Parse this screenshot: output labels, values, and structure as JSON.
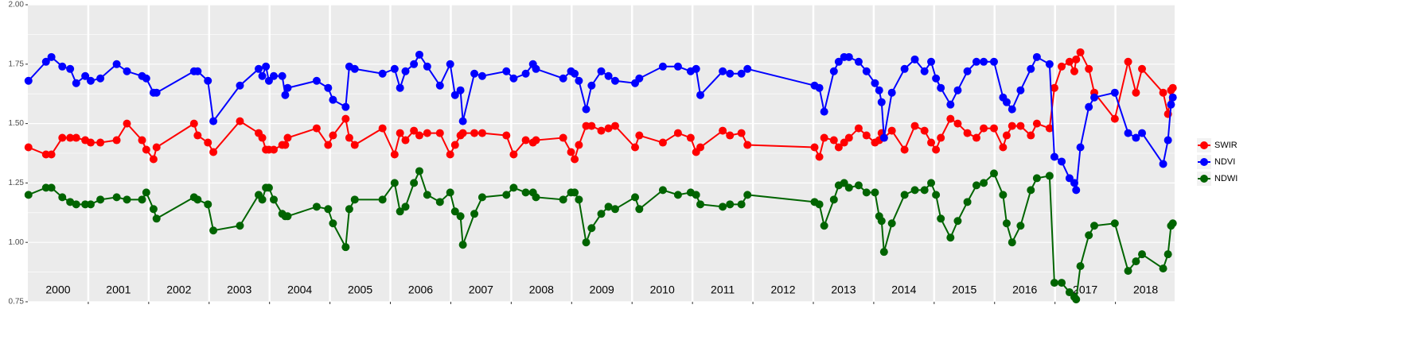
{
  "chart_data": {
    "type": "line",
    "x": [
      2000.01,
      2000.3,
      2000.39,
      2000.57,
      2000.7,
      2000.8,
      2000.95,
      2001.04,
      2001.2,
      2001.47,
      2001.64,
      2001.89,
      2001.96,
      2002.08,
      2002.13,
      2002.75,
      2002.81,
      2002.98,
      2003.07,
      2003.51,
      2003.82,
      2003.88,
      2003.94,
      2003.99,
      2004.07,
      2004.21,
      2004.26,
      2004.3,
      2004.78,
      2004.97,
      2005.05,
      2005.26,
      2005.32,
      2005.41,
      2005.87,
      2006.07,
      2006.16,
      2006.25,
      2006.39,
      2006.48,
      2006.61,
      2006.82,
      2006.99,
      2007.07,
      2007.16,
      2007.2,
      2007.39,
      2007.52,
      2007.92,
      2008.04,
      2008.24,
      2008.36,
      2008.41,
      2008.86,
      2008.99,
      2009.05,
      2009.12,
      2009.24,
      2009.33,
      2009.49,
      2009.61,
      2009.72,
      2010.05,
      2010.12,
      2010.51,
      2010.76,
      2010.97,
      2011.06,
      2011.13,
      2011.5,
      2011.62,
      2011.81,
      2011.91,
      2013.02,
      2013.1,
      2013.18,
      2013.34,
      2013.42,
      2013.51,
      2013.59,
      2013.75,
      2013.88,
      2014.02,
      2014.09,
      2014.13,
      2014.17,
      2014.3,
      2014.51,
      2014.68,
      2014.84,
      2014.95,
      2015.03,
      2015.11,
      2015.27,
      2015.39,
      2015.55,
      2015.7,
      2015.82,
      2015.99,
      2016.14,
      2016.2,
      2016.29,
      2016.43,
      2016.6,
      2016.7,
      2016.91,
      2016.99,
      2017.11,
      2017.24,
      2017.32,
      2017.35,
      2017.42,
      2017.56,
      2017.65,
      2017.99,
      2018.21,
      2018.34,
      2018.44,
      2018.79,
      2018.87,
      2018.92,
      2018.95
    ],
    "series": [
      {
        "name": "SWIR",
        "color": "#ff0000",
        "values": [
          1.4,
          1.37,
          1.37,
          1.44,
          1.44,
          1.44,
          1.43,
          1.42,
          1.42,
          1.43,
          1.5,
          1.43,
          1.39,
          1.35,
          1.4,
          1.5,
          1.45,
          1.42,
          1.38,
          1.51,
          1.46,
          1.44,
          1.39,
          1.39,
          1.39,
          1.41,
          1.41,
          1.44,
          1.48,
          1.41,
          1.45,
          1.52,
          1.44,
          1.41,
          1.48,
          1.37,
          1.46,
          1.43,
          1.47,
          1.45,
          1.46,
          1.46,
          1.37,
          1.41,
          1.45,
          1.46,
          1.46,
          1.46,
          1.45,
          1.37,
          1.43,
          1.42,
          1.43,
          1.44,
          1.38,
          1.35,
          1.41,
          1.49,
          1.49,
          1.47,
          1.48,
          1.49,
          1.4,
          1.45,
          1.42,
          1.46,
          1.44,
          1.38,
          1.4,
          1.47,
          1.45,
          1.46,
          1.41,
          1.4,
          1.36,
          1.44,
          1.43,
          1.4,
          1.42,
          1.44,
          1.48,
          1.45,
          1.42,
          1.43,
          1.46,
          1.44,
          1.47,
          1.39,
          1.49,
          1.47,
          1.42,
          1.39,
          1.44,
          1.52,
          1.5,
          1.46,
          1.44,
          1.48,
          1.48,
          1.4,
          1.45,
          1.49,
          1.49,
          1.45,
          1.5,
          1.48,
          1.65,
          1.74,
          1.76,
          1.72,
          1.77,
          1.8,
          1.73,
          1.63,
          1.52,
          1.76,
          1.63,
          1.73,
          1.63,
          1.54,
          1.64,
          1.65
        ]
      },
      {
        "name": "NDVI",
        "color": "#0000ff",
        "values": [
          1.68,
          1.76,
          1.78,
          1.74,
          1.73,
          1.67,
          1.7,
          1.68,
          1.69,
          1.75,
          1.72,
          1.7,
          1.69,
          1.63,
          1.63,
          1.72,
          1.72,
          1.68,
          1.51,
          1.66,
          1.73,
          1.7,
          1.74,
          1.68,
          1.7,
          1.7,
          1.62,
          1.65,
          1.68,
          1.65,
          1.6,
          1.57,
          1.74,
          1.73,
          1.71,
          1.73,
          1.65,
          1.72,
          1.75,
          1.79,
          1.74,
          1.66,
          1.75,
          1.62,
          1.64,
          1.51,
          1.71,
          1.7,
          1.72,
          1.69,
          1.71,
          1.75,
          1.73,
          1.69,
          1.72,
          1.71,
          1.68,
          1.56,
          1.66,
          1.72,
          1.7,
          1.68,
          1.67,
          1.69,
          1.74,
          1.74,
          1.72,
          1.73,
          1.62,
          1.72,
          1.71,
          1.71,
          1.73,
          1.66,
          1.65,
          1.55,
          1.72,
          1.76,
          1.78,
          1.78,
          1.76,
          1.72,
          1.67,
          1.64,
          1.59,
          1.44,
          1.63,
          1.73,
          1.77,
          1.72,
          1.76,
          1.69,
          1.65,
          1.58,
          1.64,
          1.72,
          1.76,
          1.76,
          1.76,
          1.61,
          1.59,
          1.56,
          1.64,
          1.73,
          1.78,
          1.75,
          1.36,
          1.34,
          1.27,
          1.25,
          1.22,
          1.4,
          1.57,
          1.61,
          1.63,
          1.46,
          1.44,
          1.46,
          1.33,
          1.43,
          1.58,
          1.61
        ]
      },
      {
        "name": "NDWI",
        "color": "#006400",
        "values": [
          1.2,
          1.23,
          1.23,
          1.19,
          1.17,
          1.16,
          1.16,
          1.16,
          1.18,
          1.19,
          1.18,
          1.18,
          1.21,
          1.14,
          1.1,
          1.19,
          1.18,
          1.16,
          1.05,
          1.07,
          1.2,
          1.18,
          1.23,
          1.23,
          1.18,
          1.12,
          1.11,
          1.11,
          1.15,
          1.14,
          1.08,
          0.98,
          1.14,
          1.18,
          1.18,
          1.25,
          1.13,
          1.15,
          1.25,
          1.3,
          1.2,
          1.17,
          1.21,
          1.13,
          1.11,
          0.99,
          1.12,
          1.19,
          1.2,
          1.23,
          1.21,
          1.21,
          1.19,
          1.18,
          1.21,
          1.21,
          1.18,
          1.0,
          1.06,
          1.12,
          1.15,
          1.14,
          1.19,
          1.14,
          1.22,
          1.2,
          1.21,
          1.2,
          1.16,
          1.15,
          1.16,
          1.16,
          1.2,
          1.17,
          1.16,
          1.07,
          1.18,
          1.24,
          1.25,
          1.23,
          1.24,
          1.21,
          1.21,
          1.11,
          1.09,
          0.96,
          1.08,
          1.2,
          1.22,
          1.22,
          1.25,
          1.2,
          1.1,
          1.02,
          1.09,
          1.17,
          1.24,
          1.25,
          1.29,
          1.2,
          1.08,
          1.0,
          1.07,
          1.22,
          1.27,
          1.28,
          0.83,
          0.83,
          0.79,
          0.77,
          0.76,
          0.9,
          1.03,
          1.07,
          1.08,
          0.88,
          0.92,
          0.95,
          0.89,
          0.95,
          1.07,
          1.08
        ]
      }
    ],
    "xlim": [
      2000,
      2018.98
    ],
    "xticks": [
      2001,
      2002,
      2003,
      2004,
      2005,
      2006,
      2007,
      2008,
      2009,
      2010,
      2011,
      2012,
      2013,
      2014,
      2015,
      2016,
      2017,
      2018
    ],
    "ylim": [
      0.75,
      2.0
    ],
    "yticks": [
      {
        "value": 0.75,
        "label": "0.75"
      },
      {
        "value": 1.0,
        "label": "1.00"
      },
      {
        "value": 1.25,
        "label": "1.25"
      },
      {
        "value": 1.5,
        "label": "1.50"
      },
      {
        "value": 1.75,
        "label": "1.75"
      },
      {
        "value": 2.0,
        "label": "2.00"
      }
    ],
    "annotations": [
      {
        "text": "2000",
        "x": 2000.5
      },
      {
        "text": "2001",
        "x": 2001.5
      },
      {
        "text": "2002",
        "x": 2002.5
      },
      {
        "text": "2003",
        "x": 2003.5
      },
      {
        "text": "2004",
        "x": 2004.5
      },
      {
        "text": "2005",
        "x": 2005.5
      },
      {
        "text": "2006",
        "x": 2006.5
      },
      {
        "text": "2007",
        "x": 2007.5
      },
      {
        "text": "2008",
        "x": 2008.5
      },
      {
        "text": "2009",
        "x": 2009.5
      },
      {
        "text": "2010",
        "x": 2010.5
      },
      {
        "text": "2011",
        "x": 2011.5
      },
      {
        "text": "2012",
        "x": 2012.5
      },
      {
        "text": "2013",
        "x": 2013.5
      },
      {
        "text": "2014",
        "x": 2014.5
      },
      {
        "text": "2015",
        "x": 2015.5
      },
      {
        "text": "2016",
        "x": 2016.5
      },
      {
        "text": "2017",
        "x": 2017.5
      },
      {
        "text": "2018",
        "x": 2018.5
      }
    ],
    "grid": true,
    "legend": "right"
  }
}
